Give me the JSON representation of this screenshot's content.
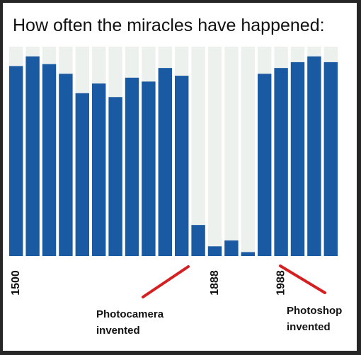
{
  "chart_data": {
    "type": "bar",
    "title": "How often the miracles have happened:",
    "values": [
      98,
      103,
      99,
      94,
      84,
      89,
      82,
      92,
      90,
      97,
      93,
      16,
      5,
      8,
      2,
      94,
      97,
      100,
      103,
      100
    ],
    "ylim": [
      0,
      108
    ],
    "grid": false,
    "tick_labels": [
      {
        "label": "1500",
        "bar_index": 0
      },
      {
        "label": "1888",
        "bar_index": 12
      },
      {
        "label": "1988",
        "bar_index": 16
      }
    ],
    "annotations": [
      {
        "id": "photocamera",
        "line1": "Photocamera",
        "line2": "invented"
      },
      {
        "id": "photoshop",
        "line1": "Photoshop",
        "line2": "invented"
      }
    ],
    "colors": {
      "bar": "#1a5aa3",
      "background_band": "#edf1ee",
      "annotation_line": "#d42020",
      "frame": "#262626"
    }
  }
}
